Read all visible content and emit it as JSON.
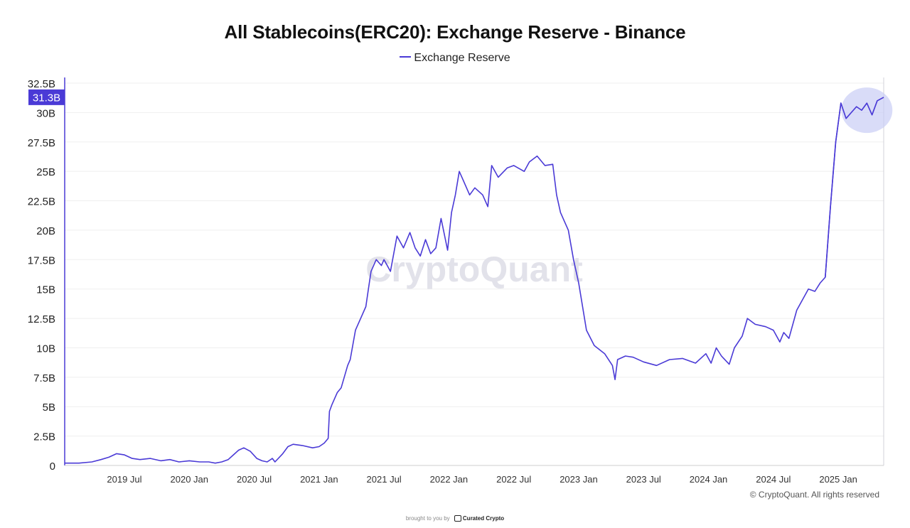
{
  "title": "All Stablecoins(ERC20): Exchange Reserve - Binance",
  "legend_label": "Exchange Reserve",
  "current_value_label": "31.3B",
  "watermark": "CryptoQuant",
  "copyright": "© CryptoQuant. All rights reserved",
  "footer": {
    "prefix": "brought to you by",
    "brand": "Curated Crypto"
  },
  "colors": {
    "line": "#4a3ad6",
    "badge": "#4a3ad6",
    "highlight": "#c9cdf5",
    "grid": "#efefef"
  },
  "chart_data": {
    "type": "line",
    "title": "All Stablecoins(ERC20): Exchange Reserve - Binance",
    "xlabel": "",
    "ylabel": "",
    "ylim": [
      0,
      32.5
    ],
    "xlim": [
      2019.04,
      2025.35
    ],
    "grid": true,
    "legend_placement": "top-center",
    "y_ticks": [
      0,
      2.5,
      5,
      7.5,
      10,
      12.5,
      15,
      17.5,
      20,
      22.5,
      25,
      27.5,
      30,
      32.5
    ],
    "y_tick_labels": [
      "0",
      "2.5B",
      "5B",
      "7.5B",
      "10B",
      "12.5B",
      "15B",
      "17.5B",
      "20B",
      "22.5B",
      "25B",
      "27.5B",
      "30B",
      "32.5B"
    ],
    "x_ticks": [
      2019.5,
      2020.0,
      2020.5,
      2021.0,
      2021.5,
      2022.0,
      2022.5,
      2023.0,
      2023.5,
      2024.0,
      2024.5,
      2025.0
    ],
    "x_tick_labels": [
      "2019 Jul",
      "2020 Jan",
      "2020 Jul",
      "2021 Jan",
      "2021 Jul",
      "2022 Jan",
      "2022 Jul",
      "2023 Jan",
      "2023 Jul",
      "2024 Jan",
      "2024 Jul",
      "2025 Jan"
    ],
    "series": [
      {
        "name": "Exchange Reserve",
        "unit": "B",
        "x": [
          2019.04,
          2019.15,
          2019.25,
          2019.32,
          2019.38,
          2019.44,
          2019.5,
          2019.56,
          2019.62,
          2019.7,
          2019.78,
          2019.85,
          2019.92,
          2020.0,
          2020.08,
          2020.15,
          2020.2,
          2020.25,
          2020.3,
          2020.34,
          2020.38,
          2020.42,
          2020.47,
          2020.52,
          2020.56,
          2020.6,
          2020.64,
          2020.66,
          2020.72,
          2020.76,
          2020.8,
          2020.87,
          2020.95,
          2021.0,
          2021.04,
          2021.07,
          2021.08,
          2021.1,
          2021.14,
          2021.17,
          2021.22,
          2021.24,
          2021.28,
          2021.32,
          2021.36,
          2021.38,
          2021.4,
          2021.44,
          2021.48,
          2021.5,
          2021.55,
          2021.6,
          2021.65,
          2021.7,
          2021.74,
          2021.78,
          2021.82,
          2021.86,
          2021.9,
          2021.94,
          2021.99,
          2022.02,
          2022.05,
          2022.08,
          2022.1,
          2022.16,
          2022.2,
          2022.26,
          2022.3,
          2022.33,
          2022.38,
          2022.45,
          2022.5,
          2022.58,
          2022.62,
          2022.68,
          2022.74,
          2022.8,
          2022.83,
          2022.86,
          2022.92,
          2022.96,
          2023.0,
          2023.06,
          2023.12,
          2023.2,
          2023.26,
          2023.28,
          2023.3,
          2023.36,
          2023.42,
          2023.5,
          2023.6,
          2023.7,
          2023.8,
          2023.9,
          2023.98,
          2024.02,
          2024.06,
          2024.1,
          2024.16,
          2024.2,
          2024.26,
          2024.3,
          2024.36,
          2024.44,
          2024.5,
          2024.55,
          2024.58,
          2024.62,
          2024.68,
          2024.72,
          2024.77,
          2024.82,
          2024.86,
          2024.9,
          2024.94,
          2024.98,
          2025.02,
          2025.06,
          2025.1,
          2025.14,
          2025.18,
          2025.22,
          2025.26,
          2025.3,
          2025.35
        ],
        "values": [
          0.2,
          0.2,
          0.3,
          0.5,
          0.7,
          1.0,
          0.9,
          0.6,
          0.5,
          0.6,
          0.4,
          0.5,
          0.3,
          0.4,
          0.3,
          0.3,
          0.2,
          0.3,
          0.5,
          0.9,
          1.3,
          1.5,
          1.2,
          0.6,
          0.4,
          0.3,
          0.6,
          0.3,
          1.0,
          1.6,
          1.8,
          1.7,
          1.5,
          1.6,
          1.9,
          2.3,
          4.6,
          5.2,
          6.2,
          6.6,
          8.5,
          9.0,
          11.5,
          12.5,
          13.5,
          15.0,
          16.5,
          17.5,
          17.0,
          17.5,
          16.5,
          19.5,
          18.5,
          19.8,
          18.5,
          17.8,
          19.2,
          18.0,
          18.5,
          21.0,
          18.3,
          21.5,
          23.0,
          25.0,
          24.5,
          23.0,
          23.6,
          23.0,
          22.0,
          25.5,
          24.5,
          25.3,
          25.5,
          25.0,
          25.8,
          26.3,
          25.5,
          25.6,
          23.0,
          21.5,
          20.0,
          17.5,
          15.5,
          11.5,
          10.2,
          9.5,
          8.5,
          7.3,
          9.0,
          9.3,
          9.2,
          8.8,
          8.5,
          9.0,
          9.1,
          8.7,
          9.5,
          8.7,
          10.0,
          9.3,
          8.6,
          10.0,
          11.0,
          12.5,
          12.0,
          11.8,
          11.5,
          10.5,
          11.3,
          10.8,
          13.2,
          14.0,
          15.0,
          14.8,
          15.5,
          16.0,
          22.0,
          27.5,
          30.8,
          29.5,
          30.0,
          30.5,
          30.2,
          30.8,
          29.8,
          31.0,
          31.3
        ]
      }
    ],
    "annotations": [
      "31.3B"
    ]
  }
}
